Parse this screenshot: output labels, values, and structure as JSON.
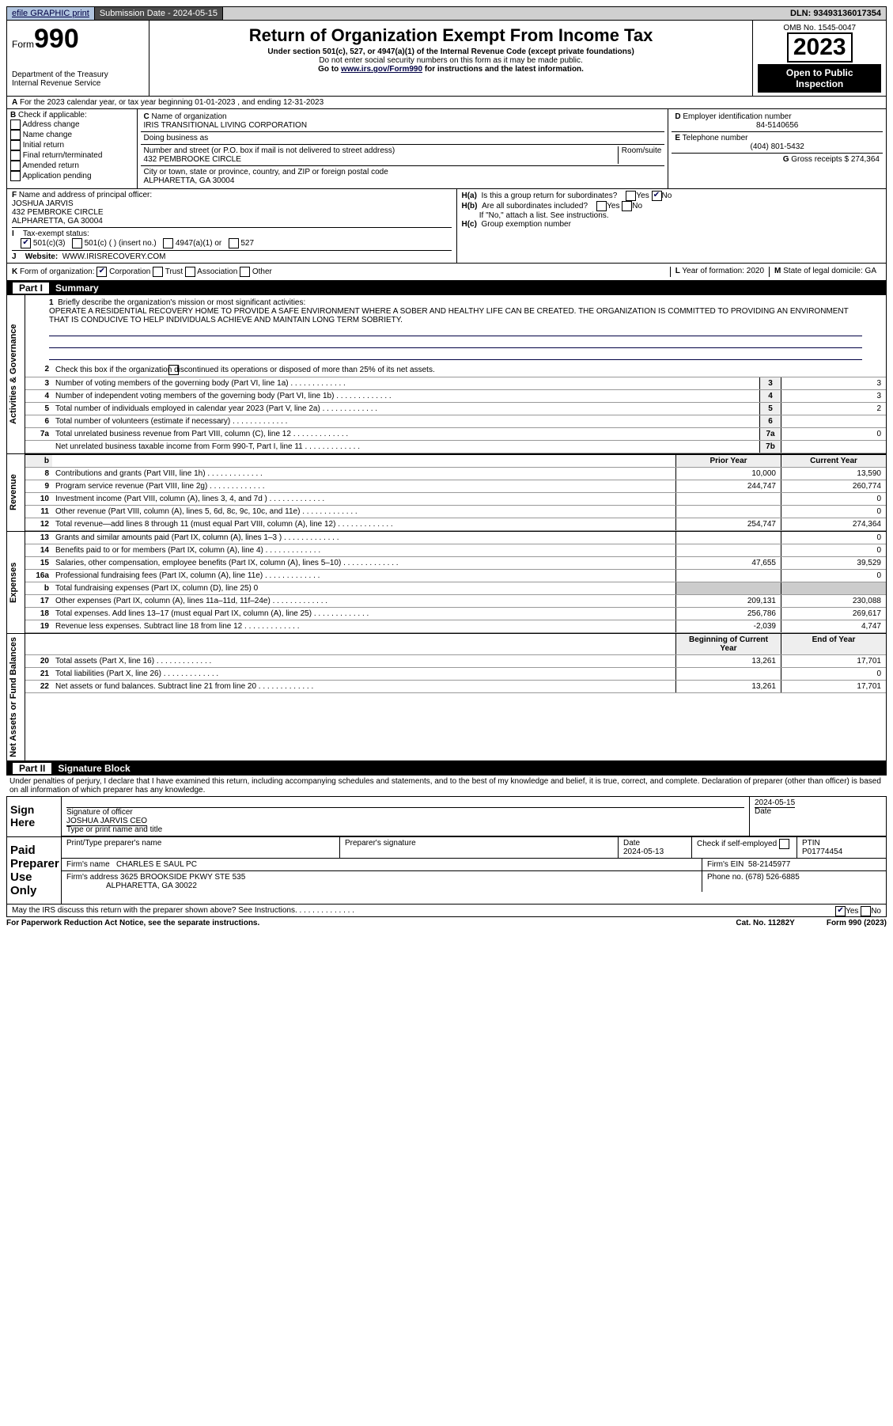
{
  "top": {
    "efile": "efile GRAPHIC print",
    "submission": "Submission Date - 2024-05-15",
    "dln": "DLN: 93493136017354"
  },
  "header": {
    "form_label": "Form",
    "form_no": "990",
    "dept": "Department of the Treasury",
    "irs": "Internal Revenue Service",
    "title": "Return of Organization Exempt From Income Tax",
    "sub1": "Under section 501(c), 527, or 4947(a)(1) of the Internal Revenue Code (except private foundations)",
    "sub2": "Do not enter social security numbers on this form as it may be made public.",
    "sub3_pre": "Go to ",
    "sub3_link": "www.irs.gov/Form990",
    "sub3_post": " for instructions and the latest information.",
    "omb": "OMB No. 1545-0047",
    "year": "2023",
    "open": "Open to Public Inspection"
  },
  "A": {
    "line": "For the 2023 calendar year, or tax year beginning 01-01-2023   , and ending 12-31-2023"
  },
  "B": {
    "label": "Check if applicable:",
    "opts": [
      "Address change",
      "Name change",
      "Initial return",
      "Final return/terminated",
      "Amended return",
      "Application pending"
    ]
  },
  "C": {
    "name_label": "Name of organization",
    "name": "IRIS TRANSITIONAL LIVING CORPORATION",
    "dba_label": "Doing business as",
    "addr_label": "Number and street (or P.O. box if mail is not delivered to street address)",
    "room_label": "Room/suite",
    "addr": "432 PEMBROOKE CIRCLE",
    "city_label": "City or town, state or province, country, and ZIP or foreign postal code",
    "city": "ALPHARETTA, GA  30004"
  },
  "D": {
    "label": "Employer identification number",
    "val": "84-5140656"
  },
  "E": {
    "label": "Telephone number",
    "val": "(404) 801-5432"
  },
  "G": {
    "label": "Gross receipts $",
    "val": "274,364"
  },
  "F": {
    "label": "Name and address of principal officer:",
    "name": "JOSHUA JARVIS",
    "addr": "432 PEMBROKE CIRCLE",
    "city": "ALPHARETTA, GA  30004"
  },
  "H": {
    "a": "Is this a group return for subordinates?",
    "b": "Are all subordinates included?",
    "b_note": "If \"No,\" attach a list. See instructions.",
    "c": "Group exemption number"
  },
  "I": {
    "label": "Tax-exempt status:",
    "o1": "501(c)(3)",
    "o2": "501(c) (  ) (insert no.)",
    "o3": "4947(a)(1) or",
    "o4": "527"
  },
  "J": {
    "label": "Website:",
    "val": "WWW.IRISRECOVERY.COM"
  },
  "K": {
    "label": "Form of organization:",
    "o": [
      "Corporation",
      "Trust",
      "Association",
      "Other"
    ]
  },
  "L": {
    "label": "Year of formation:",
    "val": "2020"
  },
  "M": {
    "label": "State of legal domicile:",
    "val": "GA"
  },
  "part1": {
    "label": "Part I",
    "title": "Summary"
  },
  "mission_label": "Briefly describe the organization's mission or most significant activities:",
  "mission": "OPERATE A RESIDENTIAL RECOVERY HOME TO PROVIDE A SAFE ENVIRONMENT WHERE A SOBER AND HEALTHY LIFE CAN BE CREATED. THE ORGANIZATION IS COMMITTED TO PROVIDING AN ENVIRONMENT THAT IS CONDUCIVE TO HELP INDIVIDUALS ACHIEVE AND MAINTAIN LONG TERM SOBRIETY.",
  "line2": "Check this box      if the organization discontinued its operations or disposed of more than 25% of its net assets.",
  "gov": [
    {
      "n": "3",
      "d": "Number of voting members of the governing body (Part VI, line 1a)",
      "b": "3",
      "v": "3"
    },
    {
      "n": "4",
      "d": "Number of independent voting members of the governing body (Part VI, line 1b)",
      "b": "4",
      "v": "3"
    },
    {
      "n": "5",
      "d": "Total number of individuals employed in calendar year 2023 (Part V, line 2a)",
      "b": "5",
      "v": "2"
    },
    {
      "n": "6",
      "d": "Total number of volunteers (estimate if necessary)",
      "b": "6",
      "v": ""
    },
    {
      "n": "7a",
      "d": "Total unrelated business revenue from Part VIII, column (C), line 12",
      "b": "7a",
      "v": "0"
    },
    {
      "n": "",
      "d": "Net unrelated business taxable income from Form 990-T, Part I, line 11",
      "b": "7b",
      "v": ""
    }
  ],
  "prior_label": "Prior Year",
  "current_label": "Current Year",
  "rev": [
    {
      "n": "8",
      "d": "Contributions and grants (Part VIII, line 1h)",
      "p": "10,000",
      "c": "13,590"
    },
    {
      "n": "9",
      "d": "Program service revenue (Part VIII, line 2g)",
      "p": "244,747",
      "c": "260,774"
    },
    {
      "n": "10",
      "d": "Investment income (Part VIII, column (A), lines 3, 4, and 7d )",
      "p": "",
      "c": "0"
    },
    {
      "n": "11",
      "d": "Other revenue (Part VIII, column (A), lines 5, 6d, 8c, 9c, 10c, and 11e)",
      "p": "",
      "c": "0"
    },
    {
      "n": "12",
      "d": "Total revenue—add lines 8 through 11 (must equal Part VIII, column (A), line 12)",
      "p": "254,747",
      "c": "274,364"
    }
  ],
  "exp": [
    {
      "n": "13",
      "d": "Grants and similar amounts paid (Part IX, column (A), lines 1–3 )",
      "p": "",
      "c": "0"
    },
    {
      "n": "14",
      "d": "Benefits paid to or for members (Part IX, column (A), line 4)",
      "p": "",
      "c": "0"
    },
    {
      "n": "15",
      "d": "Salaries, other compensation, employee benefits (Part IX, column (A), lines 5–10)",
      "p": "47,655",
      "c": "39,529"
    },
    {
      "n": "16a",
      "d": "Professional fundraising fees (Part IX, column (A), line 11e)",
      "p": "",
      "c": "0"
    },
    {
      "n": "b",
      "d": "Total fundraising expenses (Part IX, column (D), line 25) 0",
      "p": "—",
      "c": "—"
    },
    {
      "n": "17",
      "d": "Other expenses (Part IX, column (A), lines 11a–11d, 11f–24e)",
      "p": "209,131",
      "c": "230,088"
    },
    {
      "n": "18",
      "d": "Total expenses. Add lines 13–17 (must equal Part IX, column (A), line 25)",
      "p": "256,786",
      "c": "269,617"
    },
    {
      "n": "19",
      "d": "Revenue less expenses. Subtract line 18 from line 12",
      "p": "-2,039",
      "c": "4,747"
    }
  ],
  "beg_label": "Beginning of Current Year",
  "end_label": "End of Year",
  "net": [
    {
      "n": "20",
      "d": "Total assets (Part X, line 16)",
      "p": "13,261",
      "c": "17,701"
    },
    {
      "n": "21",
      "d": "Total liabilities (Part X, line 26)",
      "p": "",
      "c": "0"
    },
    {
      "n": "22",
      "d": "Net assets or fund balances. Subtract line 21 from line 20",
      "p": "13,261",
      "c": "17,701"
    }
  ],
  "part2": {
    "label": "Part II",
    "title": "Signature Block"
  },
  "perjury": "Under penalties of perjury, I declare that I have examined this return, including accompanying schedules and statements, and to the best of my knowledge and belief, it is true, correct, and complete. Declaration of preparer (other than officer) is based on all information of which preparer has any knowledge.",
  "sign": {
    "here": "Sign Here",
    "sig_label": "Signature of officer",
    "officer": "JOSHUA JARVIS  CEO",
    "type_label": "Type or print name and title",
    "date_label": "Date",
    "date": "2024-05-15"
  },
  "paid": {
    "label": "Paid Preparer Use Only",
    "pname_label": "Print/Type preparer's name",
    "psig_label": "Preparer's signature",
    "pdate_label": "Date",
    "pdate": "2024-05-13",
    "check_label": "Check       if self-employed",
    "ptin_label": "PTIN",
    "ptin": "P01774454",
    "firm_label": "Firm's name",
    "firm": "CHARLES E SAUL PC",
    "ein_label": "Firm's EIN",
    "ein": "58-2145977",
    "addr_label": "Firm's address",
    "addr1": "3625 BROOKSIDE PKWY STE 535",
    "addr2": "ALPHARETTA, GA  30022",
    "phone_label": "Phone no.",
    "phone": "(678) 526-6885"
  },
  "discuss": "May the IRS discuss this return with the preparer shown above? See Instructions.",
  "footer": {
    "pra": "For Paperwork Reduction Act Notice, see the separate instructions.",
    "cat": "Cat. No. 11282Y",
    "form": "Form 990 (2023)"
  },
  "vtabs": {
    "gov": "Activities & Governance",
    "rev": "Revenue",
    "exp": "Expenses",
    "net": "Net Assets or Fund Balances"
  }
}
